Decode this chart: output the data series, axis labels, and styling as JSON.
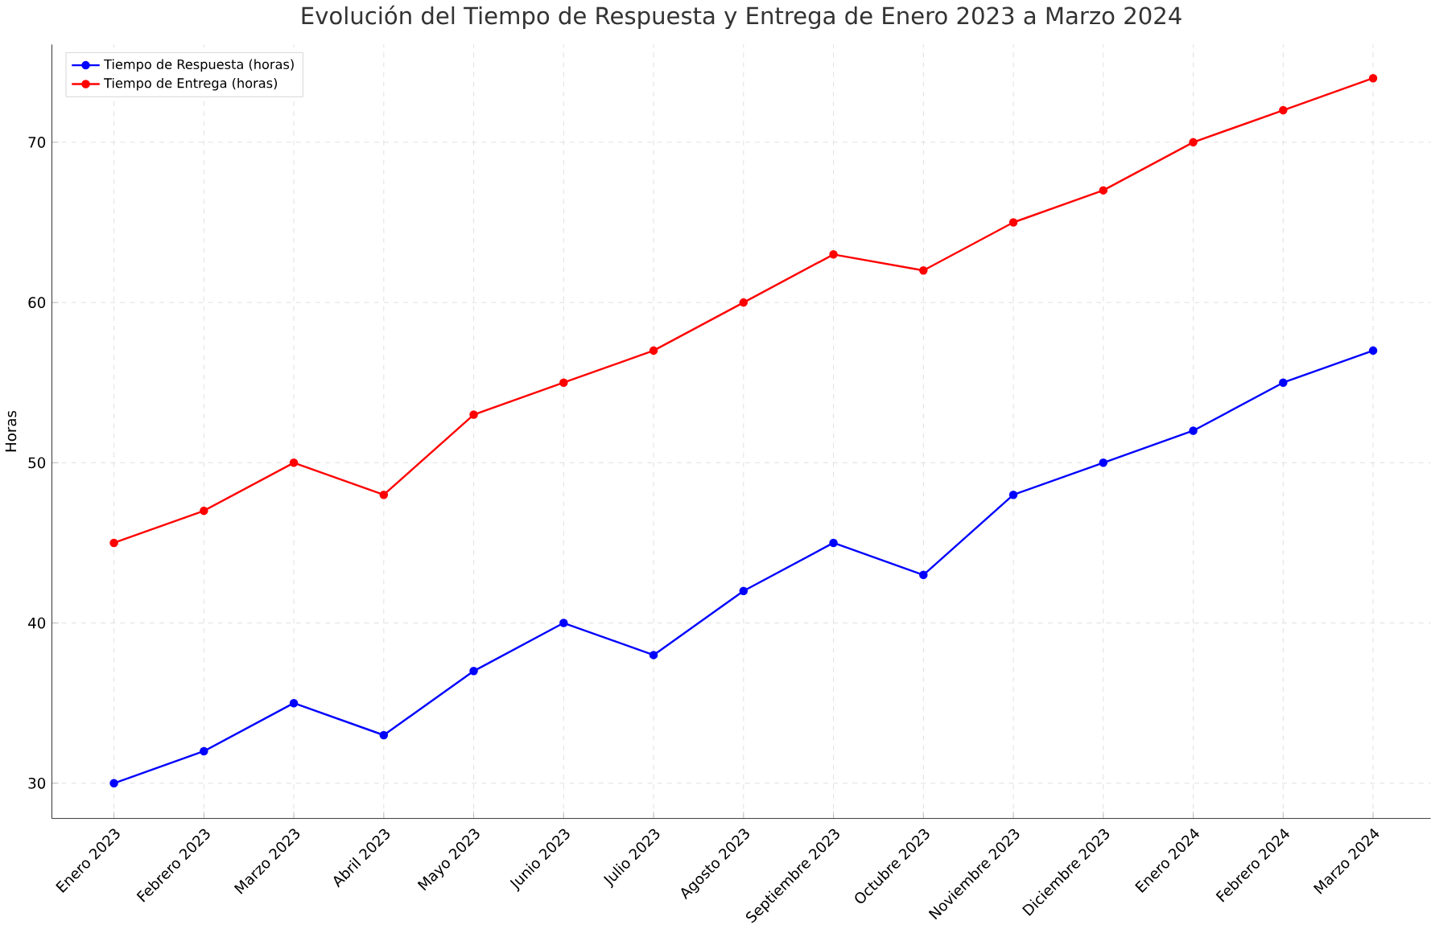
{
  "chart_data": {
    "type": "line",
    "title": "Evolución del Tiempo de Respuesta y Entrega de Enero 2023 a Marzo 2024",
    "ylabel": "Horas",
    "categories": [
      "Enero 2023",
      "Febrero 2023",
      "Marzo 2023",
      "Abril 2023",
      "Mayo 2023",
      "Junio 2023",
      "Julio 2023",
      "Agosto 2023",
      "Septiembre 2023",
      "Octubre 2023",
      "Noviembre 2023",
      "Diciembre 2023",
      "Enero 2024",
      "Febrero 2024",
      "Marzo 2024"
    ],
    "series": [
      {
        "name": "Tiempo de Respuesta (horas)",
        "color": "#0000ff",
        "values": [
          30,
          32,
          35,
          33,
          37,
          40,
          38,
          42,
          45,
          43,
          48,
          50,
          52,
          55,
          57
        ]
      },
      {
        "name": "Tiempo de Entrega (horas)",
        "color": "#ff0000",
        "values": [
          45,
          47,
          50,
          48,
          53,
          55,
          57,
          60,
          63,
          62,
          65,
          67,
          70,
          72,
          74
        ]
      }
    ],
    "ylim": [
      27.8,
      76.1
    ],
    "yticks": [
      30,
      40,
      50,
      60,
      70
    ],
    "grid": true,
    "legend": "top left",
    "marker": "circle",
    "line_style": "solid"
  }
}
